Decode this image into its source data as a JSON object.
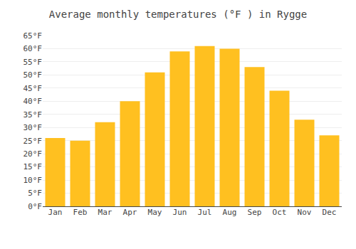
{
  "chart_data": {
    "type": "bar",
    "title": "Average monthly temperatures (°F ) in Rygge",
    "categories": [
      "Jan",
      "Feb",
      "Mar",
      "Apr",
      "May",
      "Jun",
      "Jul",
      "Aug",
      "Sep",
      "Oct",
      "Nov",
      "Dec"
    ],
    "values": [
      26,
      25,
      32,
      40,
      51,
      59,
      61,
      60,
      53,
      44,
      33,
      27
    ],
    "color": "#FFC020",
    "ylim": [
      0,
      65
    ],
    "yticks": [
      {
        "value": 0,
        "label": "0°F"
      },
      {
        "value": 5,
        "label": "5°F"
      },
      {
        "value": 10,
        "label": "10°F"
      },
      {
        "value": 15,
        "label": "15°F"
      },
      {
        "value": 20,
        "label": "20°F"
      },
      {
        "value": 25,
        "label": "25°F"
      },
      {
        "value": 30,
        "label": "30°F"
      },
      {
        "value": 35,
        "label": "35°F"
      },
      {
        "value": 40,
        "label": "40°F"
      },
      {
        "value": 45,
        "label": "45°F"
      },
      {
        "value": 50,
        "label": "50°F"
      },
      {
        "value": 55,
        "label": "55°F"
      },
      {
        "value": 60,
        "label": "60°F"
      },
      {
        "value": 65,
        "label": "65°F"
      }
    ],
    "grid": true
  }
}
